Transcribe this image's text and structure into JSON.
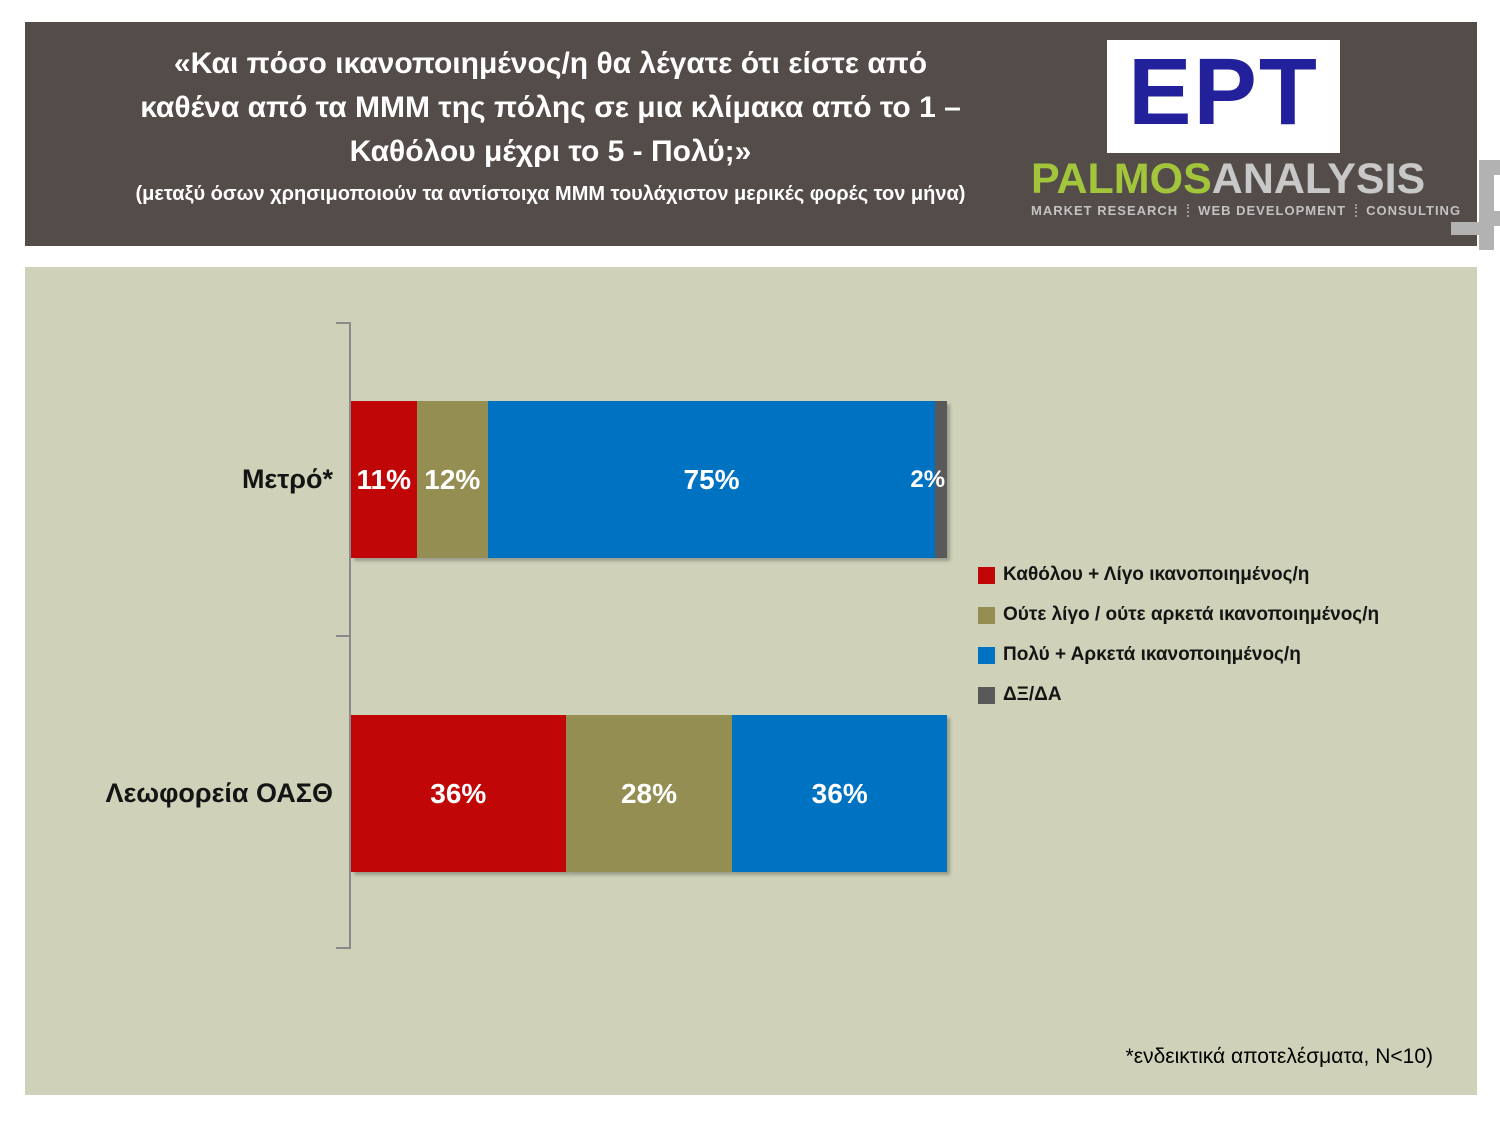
{
  "header": {
    "title_line1": "«Και πόσο ικανοποιημένος/η θα λέγατε ότι είστε από",
    "title_line2": "καθένα από τα ΜΜΜ της πόλης σε μια κλίμακα από το 1 –",
    "title_line3": "Καθόλου μέχρι το 5 - Πολύ;»",
    "subtitle": "(μεταξύ όσων χρησιμοποιούν τα αντίστοιχα ΜΜΜ τουλάχιστον μερικές φορές τον μήνα)",
    "colors": {
      "banner_bg": "#534c49",
      "title_text": "#ffffff"
    },
    "ert_logo": {
      "text": "ΕΡΤ",
      "text_color": "#22219b",
      "bg": "#ffffff"
    },
    "palmos_logo": {
      "name_part1": "PALMOS",
      "name_part2": "ANALYSIS",
      "name_part1_color": "#a3c53c",
      "name_part2_color": "#c8c8c8",
      "tagline_items": [
        "MARKET RESEARCH",
        "WEB DEVELOPMENT",
        "CONSULTING"
      ]
    }
  },
  "chart_data": {
    "type": "bar",
    "orientation": "horizontal",
    "stacked": true,
    "categories": [
      "Μετρό*",
      "Λεωφορεία ΟΑΣΘ"
    ],
    "series": [
      {
        "name": "Καθόλου + Λίγο ικανοποιημένος/η",
        "color": "#c00606",
        "values": [
          11,
          36
        ]
      },
      {
        "name": "Ούτε λίγο / ούτε αρκετά ικανοποιημένος/η",
        "color": "#948e52",
        "values": [
          12,
          28
        ]
      },
      {
        "name": "Πολύ + Αρκετά ικανοποιημένος/η",
        "color": "#0072c2",
        "values": [
          75,
          36
        ]
      },
      {
        "name": "ΔΞ/ΔΑ",
        "color": "#595959",
        "values": [
          2,
          0
        ]
      }
    ],
    "value_suffix": "%",
    "xlim": [
      0,
      100
    ],
    "grid": false,
    "legend_position": "right",
    "plot_bg": "#cfd2b8",
    "axis_color": "#8a8a8a"
  },
  "footnote": "*ενδεικτικά αποτελέσματα, N<10)"
}
